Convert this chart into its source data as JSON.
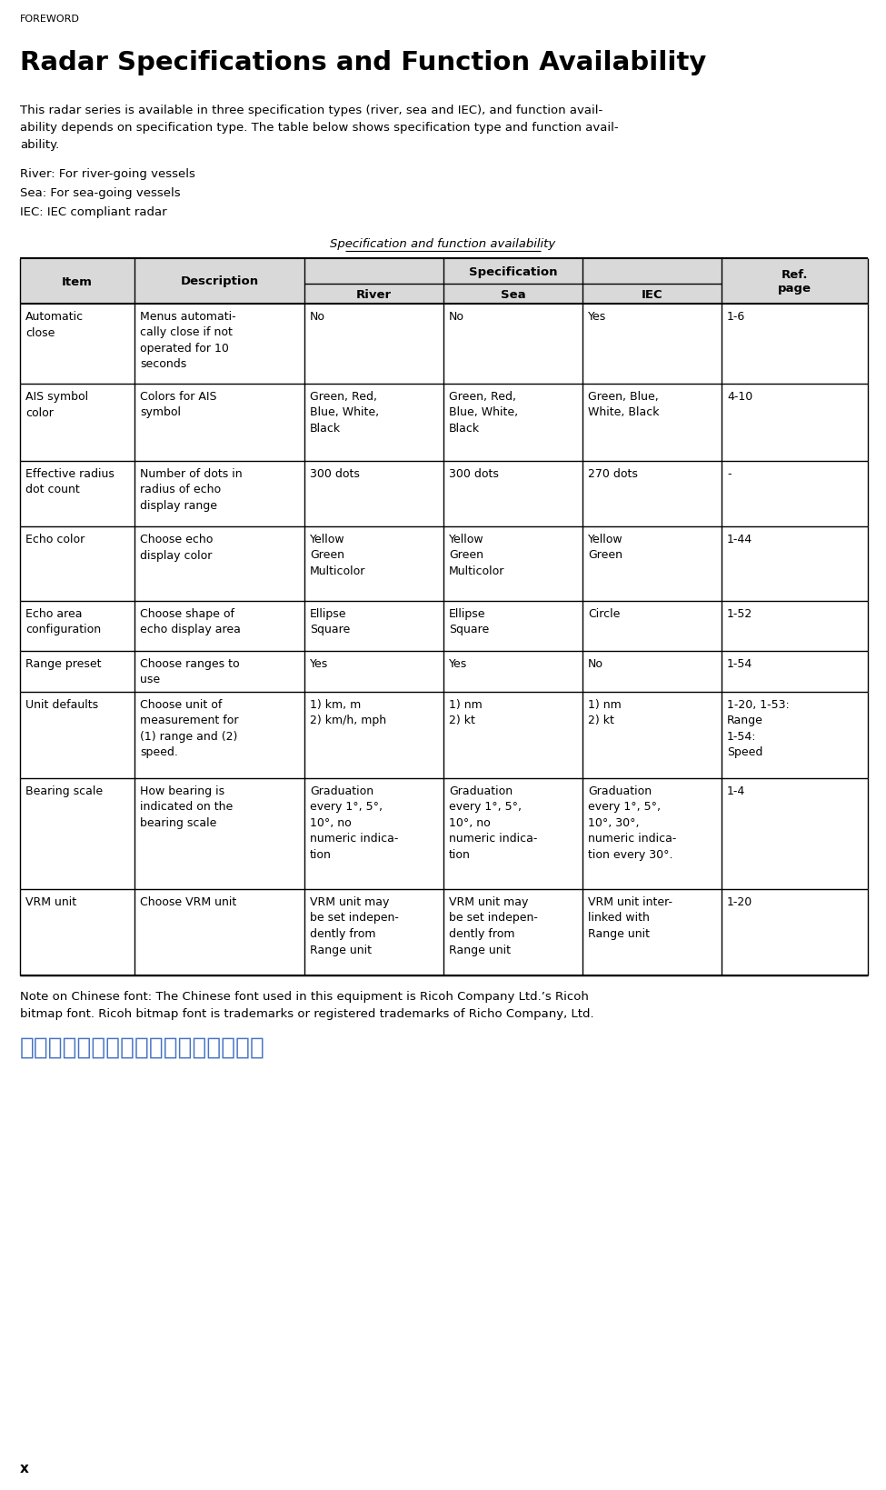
{
  "foreword_label": "FOREWORD",
  "title": "Radar Specifications and Function Availability",
  "intro_text": "This radar series is available in three specification types (river, sea and IEC), and function avail-\nability depends on specification type. The table below shows specification type and function avail-\nability.",
  "bullet_lines": [
    "River: For river-going vessels",
    "Sea: For sea-going vessels",
    "IEC: IEC compliant radar"
  ],
  "table_title": "Specification and function availability",
  "sub_headers": [
    "River",
    "Sea",
    "IEC"
  ],
  "rows": [
    {
      "item": "Automatic\nclose",
      "desc": "Menus automati-\ncally close if not\noperated for 10\nseconds",
      "river": "No",
      "sea": "No",
      "iec": "Yes",
      "ref": "1-6"
    },
    {
      "item": "AIS symbol\ncolor",
      "desc": "Colors for AIS\nsymbol",
      "river": "Green, Red,\nBlue, White,\nBlack",
      "sea": "Green, Red,\nBlue, White,\nBlack",
      "iec": "Green, Blue,\nWhite, Black",
      "ref": "4-10"
    },
    {
      "item": "Effective radius\ndot count",
      "desc": "Number of dots in\nradius of echo\ndisplay range",
      "river": "300 dots",
      "sea": "300 dots",
      "iec": "270 dots",
      "ref": "-"
    },
    {
      "item": "Echo color",
      "desc": "Choose echo\ndisplay color",
      "river": "Yellow\nGreen\nMulticolor",
      "sea": "Yellow\nGreen\nMulticolor",
      "iec": "Yellow\nGreen",
      "ref": "1-44"
    },
    {
      "item": "Echo area\nconfiguration",
      "desc": "Choose shape of\necho display area",
      "river": "Ellipse\nSquare",
      "sea": "Ellipse\nSquare",
      "iec": "Circle",
      "ref": "1-52"
    },
    {
      "item": "Range preset",
      "desc": "Choose ranges to\nuse",
      "river": "Yes",
      "sea": "Yes",
      "iec": "No",
      "ref": "1-54"
    },
    {
      "item": "Unit defaults",
      "desc": "Choose unit of\nmeasurement for\n(1) range and (2)\nspeed.",
      "river": "1) km, m\n2) km/h, mph",
      "sea": "1) nm\n2) kt",
      "iec": "1) nm\n2) kt",
      "ref": "1-20, 1-53:\nRange\n1-54:\nSpeed"
    },
    {
      "item": "Bearing scale",
      "desc": "How bearing is\nindicated on the\nbearing scale",
      "river": "Graduation\nevery 1°, 5°,\n10°, no\nnumeric indica-\ntion",
      "sea": "Graduation\nevery 1°, 5°,\n10°, no\nnumeric indica-\ntion",
      "iec": "Graduation\nevery 1°, 5°,\n10°, 30°,\nnumeric indica-\ntion every 30°.",
      "ref": "1-4"
    },
    {
      "item": "VRM unit",
      "desc": "Choose VRM unit",
      "river": "VRM unit may\nbe set indepen-\ndently from\nRange unit",
      "sea": "VRM unit may\nbe set indepen-\ndently from\nRange unit",
      "iec": "VRM unit inter-\nlinked with\nRange unit",
      "ref": "1-20"
    }
  ],
  "note_text": "Note on Chinese font: The Chinese font used in this equipment is Ricoh Company Ltd.’s Ricoh\nbitmap font. Ricoh bitmap font is trademarks or registered trademarks of Richo Company, Ltd.",
  "chinese_text": "中文字型由北京字研技术开发中心提供",
  "bottom_label": "x",
  "bg_color": "#ffffff",
  "text_color": "#000000",
  "chinese_color": "#4472c4",
  "header_bg": "#d9d9d9"
}
